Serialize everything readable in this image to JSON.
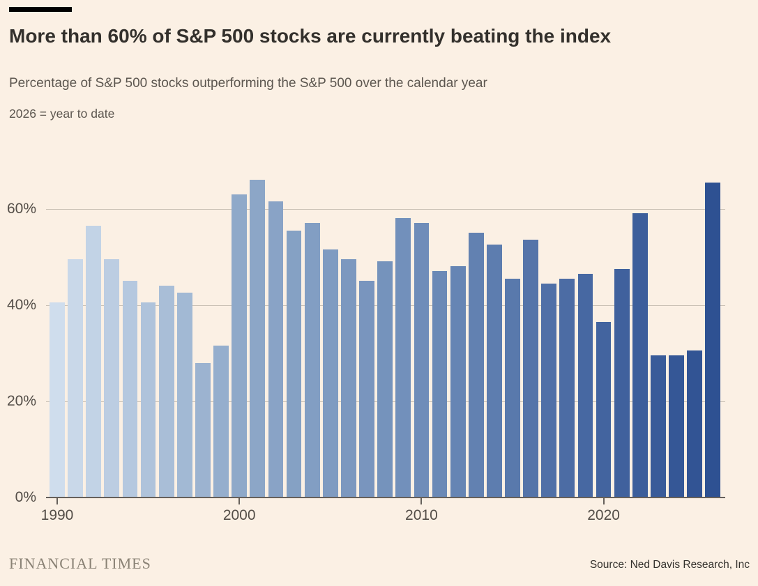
{
  "page": {
    "background": "#FBF0E4",
    "accent_bar_color": "#000000"
  },
  "header": {
    "title": "More than 60% of S&P 500 stocks are currently beating the index",
    "subtitle": "Percentage of S&P 500 stocks outperforming the S&P 500 over the calendar year",
    "note": "2026 = year to date"
  },
  "footer": {
    "brand": "FINANCIAL TIMES",
    "source": "Source: Ned Davis Research, Inc"
  },
  "chart_data": {
    "type": "bar",
    "title": "More than 60% of S&P 500 stocks are currently beating the index",
    "subtitle": "Percentage of S&P 500 stocks outperforming the S&P 500 over the calendar year",
    "note": "2026 = year to date",
    "xlabel": "",
    "ylabel": "",
    "ylim": [
      0,
      70
    ],
    "grid": true,
    "legend": "none",
    "categories": [
      1990,
      1991,
      1992,
      1993,
      1994,
      1995,
      1996,
      1997,
      1998,
      1999,
      2000,
      2001,
      2002,
      2003,
      2004,
      2005,
      2006,
      2007,
      2008,
      2009,
      2010,
      2011,
      2012,
      2013,
      2014,
      2015,
      2016,
      2017,
      2018,
      2019,
      2020,
      2021,
      2022,
      2023,
      2024,
      2025,
      2026
    ],
    "values": [
      40.5,
      49.5,
      56.5,
      49.5,
      45,
      40.5,
      44,
      42.5,
      28,
      31.5,
      63,
      66,
      61.5,
      55.5,
      57,
      51.5,
      49.5,
      45,
      49,
      58,
      57,
      47,
      48,
      55,
      52.5,
      45.5,
      53.5,
      44.5,
      45.5,
      46.5,
      36.5,
      47.5,
      59,
      29.5,
      29.5,
      30.5,
      65.5
    ],
    "yticks": [
      {
        "value": 0,
        "label": "0%"
      },
      {
        "value": 20,
        "label": "20%"
      },
      {
        "value": 40,
        "label": "40%"
      },
      {
        "value": 60,
        "label": "60%"
      }
    ],
    "xticks": [
      {
        "year": 1990,
        "label": "1990"
      },
      {
        "year": 2000,
        "label": "2000"
      },
      {
        "year": 2010,
        "label": "2010"
      },
      {
        "year": 2020,
        "label": "2020"
      }
    ],
    "color_stops": [
      {
        "index": 0,
        "color": "#CFDDED"
      },
      {
        "index": 10,
        "color": "#8FA9C9"
      },
      {
        "index": 20,
        "color": "#6F8DB9"
      },
      {
        "index": 30,
        "color": "#43649F"
      },
      {
        "index": 36,
        "color": "#2E5192"
      }
    ],
    "grid_color": "#CBC2B6",
    "axis_color": "#66605B",
    "tick_label_color": "#544E48"
  }
}
